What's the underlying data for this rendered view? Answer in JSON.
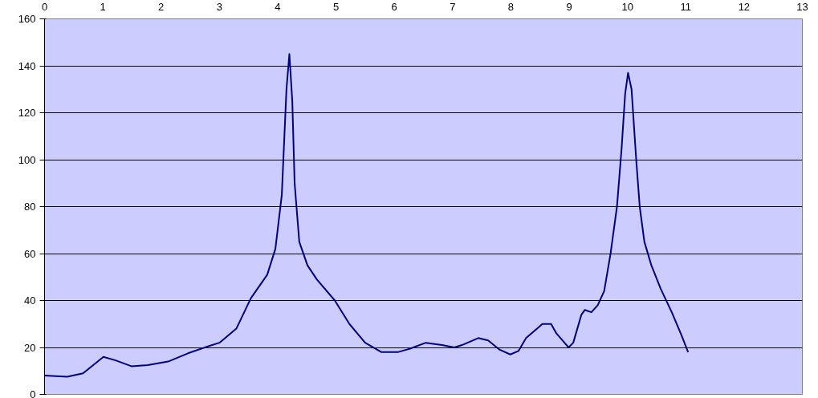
{
  "chart_data": {
    "type": "line",
    "x": [
      0,
      0.39,
      0.66,
      1.01,
      1.22,
      1.49,
      1.77,
      2.12,
      2.46,
      2.81,
      3.0,
      3.29,
      3.54,
      3.82,
      3.96,
      4.07,
      4.15,
      4.2,
      4.25,
      4.29,
      4.37,
      4.51,
      4.67,
      4.98,
      5.23,
      5.5,
      5.78,
      6.06,
      6.27,
      6.54,
      6.82,
      7.03,
      7.16,
      7.44,
      7.61,
      7.81,
      7.99,
      8.13,
      8.26,
      8.47,
      8.54,
      8.69,
      8.78,
      8.92,
      8.99,
      9.07,
      9.14,
      9.21,
      9.27,
      9.38,
      9.49,
      9.6,
      9.71,
      9.82,
      9.9,
      9.96,
      10.01,
      10.07,
      10.15,
      10.21,
      10.29,
      10.41,
      10.57,
      10.76,
      10.93,
      11.04
    ],
    "series": [
      {
        "color": "#000080",
        "values": [
          8,
          7.5,
          9,
          16,
          14.5,
          12,
          12.5,
          14,
          17.5,
          20.5,
          22,
          28,
          41,
          51,
          62,
          85,
          130,
          145,
          125,
          90,
          65,
          55,
          49,
          40,
          30,
          22,
          18,
          18,
          19.5,
          22,
          21,
          20,
          21,
          24,
          23,
          19,
          17,
          18.5,
          24,
          28.5,
          30,
          30,
          26,
          22,
          20,
          22,
          28,
          34,
          36,
          35,
          38,
          44,
          60,
          80,
          105,
          128,
          137,
          130,
          100,
          80,
          65,
          55,
          45,
          35,
          25,
          18
        ]
      }
    ],
    "xlim": [
      0,
      13
    ],
    "xticks": [
      0,
      1,
      2,
      3,
      4,
      5,
      6,
      7,
      8,
      9,
      10,
      11,
      12,
      13
    ],
    "ylim": [
      0,
      160
    ],
    "yticks": [
      0,
      20,
      40,
      60,
      80,
      100,
      120,
      140,
      160
    ],
    "grid": "y",
    "marker": "none",
    "line_style": "solid"
  }
}
